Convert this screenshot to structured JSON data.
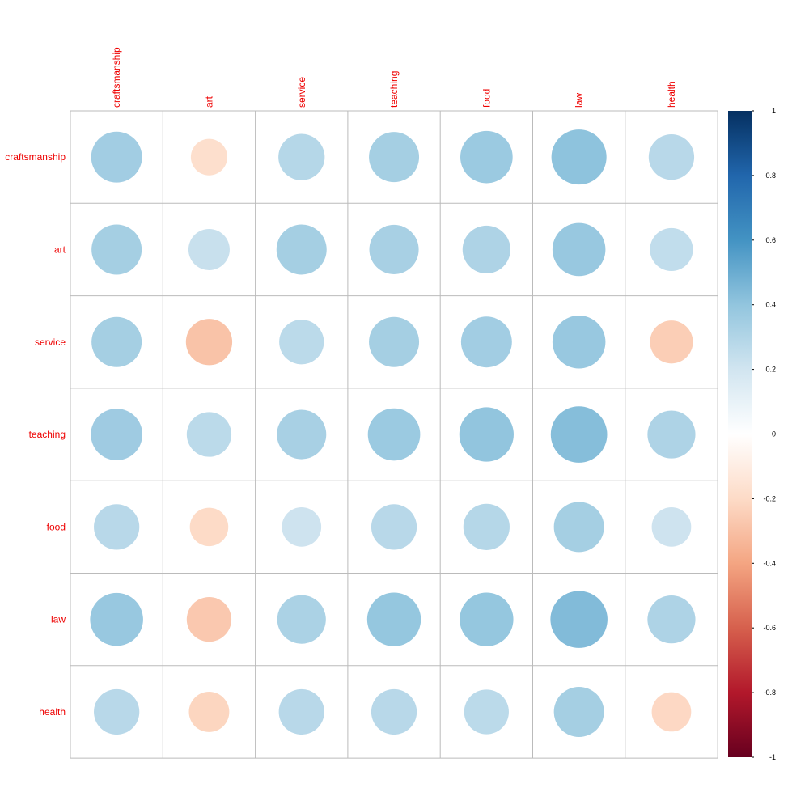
{
  "chart_data": {
    "type": "heatmap",
    "variables": [
      "craftsmanship",
      "art",
      "service",
      "teaching",
      "food",
      "law",
      "health"
    ],
    "matrix": [
      [
        0.35,
        -0.18,
        0.29,
        0.34,
        0.37,
        0.41,
        0.28
      ],
      [
        0.34,
        0.23,
        0.34,
        0.33,
        0.31,
        0.38,
        0.25
      ],
      [
        0.34,
        -0.29,
        0.27,
        0.34,
        0.35,
        0.38,
        -0.25
      ],
      [
        0.36,
        0.27,
        0.33,
        0.37,
        0.4,
        0.43,
        0.31
      ],
      [
        0.28,
        -0.2,
        0.21,
        0.28,
        0.29,
        0.34,
        0.21
      ],
      [
        0.38,
        -0.27,
        0.32,
        0.39,
        0.39,
        0.44,
        0.31
      ],
      [
        0.28,
        -0.22,
        0.28,
        0.28,
        0.27,
        0.34,
        -0.21
      ]
    ],
    "colorbar": {
      "ticks": [
        "1",
        "0.8",
        "0.6",
        "0.4",
        "0.2",
        "0",
        "-0.2",
        "-0.4",
        "-0.6",
        "-0.8",
        "-1"
      ],
      "range": [
        -1,
        1
      ]
    },
    "label_color": "#ee0000",
    "grid_color": "#bbbbbb",
    "palette": [
      "#67001F",
      "#B2182B",
      "#D6604D",
      "#F4A582",
      "#FDDBC7",
      "#FFFFFF",
      "#D1E5F0",
      "#92C5DE",
      "#4393C3",
      "#2166AC",
      "#053061"
    ]
  }
}
